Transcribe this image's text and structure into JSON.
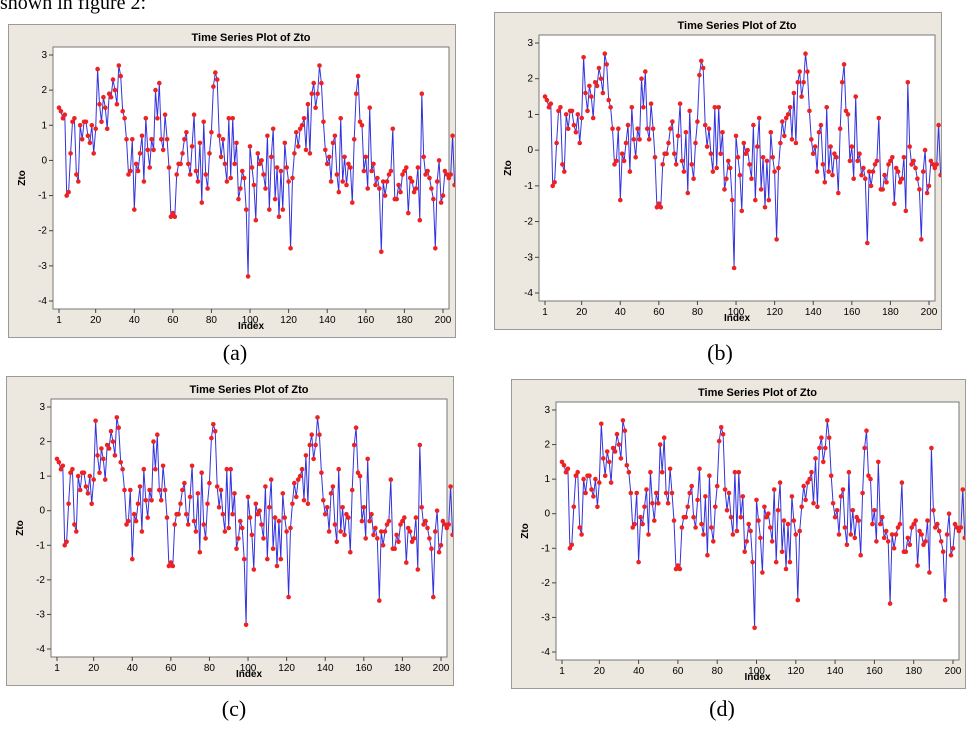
{
  "top_fragment": "shown in figure 2:",
  "captions": [
    "(a)",
    "(b)",
    "(c)",
    "(d)"
  ],
  "chart_data": [
    {
      "type": "line",
      "title": "Time Series Plot of Zto",
      "xlabel": "Index",
      "ylabel": "Zto",
      "xticks": [
        1,
        20,
        40,
        60,
        80,
        100,
        120,
        140,
        160,
        180,
        200
      ],
      "yticks": [
        -4,
        -3,
        -2,
        -1,
        0,
        1,
        2,
        3
      ],
      "xlim": [
        1,
        200
      ],
      "ylim": [
        -4,
        3
      ],
      "line_color": "#3333dd",
      "marker_color": "#ee2222",
      "series": [
        {
          "values": [
            1.5,
            1.4,
            1.2,
            1.3,
            -1.0,
            -0.9,
            0.2,
            1.1,
            1.2,
            -0.4,
            -0.6,
            1.0,
            0.6,
            1.1,
            1.1,
            0.7,
            0.5,
            1.0,
            0.2,
            0.9,
            2.6,
            1.6,
            1.1,
            1.8,
            1.5,
            0.9,
            1.9,
            1.8,
            2.3,
            2.0,
            1.6,
            2.7,
            2.4,
            1.4,
            1.2,
            0.6,
            -0.4,
            -0.3,
            0.6,
            -1.4,
            -0.1,
            -0.3,
            0.2,
            0.7,
            -0.6,
            1.2,
            0.3,
            -0.2,
            0.6,
            0.3,
            2.0,
            1.2,
            2.2,
            0.6,
            0.3,
            1.3,
            0.6,
            -0.2,
            -1.6,
            -1.5,
            -1.6,
            -0.4,
            -0.1,
            -0.1,
            0.2,
            0.6,
            0.8,
            -0.1,
            -0.4,
            0.4,
            1.3,
            -0.3,
            -0.6,
            0.5,
            -1.2,
            1.1,
            -0.4,
            -0.8,
            0.2,
            0.8,
            2.1,
            2.5,
            2.3,
            0.7,
            0.1,
            0.6,
            -0.1,
            -0.6,
            1.2,
            -0.5,
            1.2,
            -0.1,
            0.5,
            -1.1,
            -0.8,
            -0.3,
            -0.5,
            -1.4,
            -3.3,
            0.4,
            -0.2,
            -0.7,
            -1.7,
            0.2,
            -0.1,
            0.0,
            -0.4,
            -0.8,
            0.7,
            -1.4,
            0.1,
            0.9,
            -1.1,
            -0.2,
            -1.6,
            -0.3,
            -1.4,
            0.5,
            -0.2,
            -0.6,
            -2.5,
            -0.5,
            0.2,
            0.8,
            0.4,
            0.9,
            1.0,
            1.2,
            0.3,
            1.6,
            0.2,
            1.9,
            2.2,
            1.5,
            1.9,
            2.7,
            2.2,
            1.1,
            0.3,
            -0.1,
            0.1,
            -0.6,
            0.5,
            0.7,
            -0.4,
            -0.9,
            1.2,
            -0.6,
            0.1,
            -0.7,
            -0.1,
            -0.2,
            -1.2,
            0.6,
            1.9,
            2.4,
            1.1,
            1.0,
            -0.3,
            0.1,
            -0.8,
            1.5,
            -0.3,
            -0.1,
            -0.7,
            -0.5,
            -0.8,
            -2.6,
            -0.6,
            -1.0,
            -0.6,
            -0.4,
            -0.3,
            0.9,
            -1.1,
            -1.1,
            -0.7,
            -0.9,
            -0.4,
            -0.3,
            -0.2,
            -1.5,
            -0.5,
            -0.6,
            -0.9,
            -0.8,
            -0.2,
            -1.7,
            1.9,
            0.1,
            -0.4,
            -0.3,
            -0.5,
            -0.8,
            -1.1,
            -2.5,
            -0.6,
            0.0,
            -1.2,
            -1.0,
            -0.3,
            -0.4,
            -0.5,
            -0.4,
            0.7,
            -0.7
          ]
        }
      ]
    },
    {
      "type": "line",
      "title": "Time Series Plot of Zto",
      "xlabel": "Index",
      "ylabel": "Zto",
      "xticks": [
        1,
        20,
        40,
        60,
        80,
        100,
        120,
        140,
        160,
        180,
        200
      ],
      "yticks": [
        -4,
        -3,
        -2,
        -1,
        0,
        1,
        2,
        3
      ],
      "xlim": [
        1,
        200
      ],
      "ylim": [
        -4,
        3
      ],
      "line_color": "#3333dd",
      "marker_color": "#ee2222",
      "series": [
        {
          "values": [
            1.5,
            1.4,
            1.2,
            1.3,
            -1.0,
            -0.9,
            0.2,
            1.1,
            1.2,
            -0.4,
            -0.6,
            1.0,
            0.6,
            1.1,
            1.1,
            0.7,
            0.5,
            1.0,
            0.2,
            0.9,
            2.6,
            1.6,
            1.1,
            1.8,
            1.5,
            0.9,
            1.9,
            1.8,
            2.3,
            2.0,
            1.6,
            2.7,
            2.4,
            1.4,
            1.2,
            0.6,
            -0.4,
            -0.3,
            0.6,
            -1.4,
            -0.1,
            -0.3,
            0.2,
            0.7,
            -0.6,
            1.2,
            0.3,
            -0.2,
            0.6,
            0.3,
            2.0,
            1.2,
            2.2,
            0.6,
            0.3,
            1.3,
            0.6,
            -0.2,
            -1.6,
            -1.5,
            -1.6,
            -0.4,
            -0.1,
            -0.1,
            0.2,
            0.6,
            0.8,
            -0.1,
            -0.4,
            0.4,
            1.3,
            -0.3,
            -0.6,
            0.5,
            -1.2,
            1.1,
            -0.4,
            -0.8,
            0.2,
            0.8,
            2.1,
            2.5,
            2.3,
            0.7,
            0.1,
            0.6,
            -0.1,
            -0.6,
            1.2,
            -0.5,
            1.2,
            -0.1,
            0.5,
            -1.1,
            -0.8,
            -0.3,
            -0.5,
            -1.4,
            -3.3,
            0.4,
            -0.2,
            -0.7,
            -1.7,
            0.2,
            -0.1,
            0.0,
            -0.4,
            -0.8,
            0.7,
            -1.4,
            0.1,
            0.9,
            -1.1,
            -0.2,
            -1.6,
            -0.3,
            -1.4,
            0.5,
            -0.2,
            -0.6,
            -2.5,
            -0.5,
            0.2,
            0.8,
            0.4,
            0.9,
            1.0,
            1.2,
            0.3,
            1.6,
            0.2,
            1.9,
            2.2,
            1.5,
            1.9,
            2.7,
            2.2,
            1.1,
            0.3,
            -0.1,
            0.1,
            -0.6,
            0.5,
            0.7,
            -0.4,
            -0.9,
            1.2,
            -0.6,
            0.1,
            -0.7,
            -0.1,
            -0.2,
            -1.2,
            0.6,
            1.9,
            2.4,
            1.1,
            1.0,
            -0.3,
            0.1,
            -0.8,
            1.5,
            -0.3,
            -0.1,
            -0.7,
            -0.5,
            -0.8,
            -2.6,
            -0.6,
            -1.0,
            -0.6,
            -0.4,
            -0.3,
            0.9,
            -1.1,
            -1.1,
            -0.7,
            -0.9,
            -0.4,
            -0.3,
            -0.2,
            -1.5,
            -0.5,
            -0.6,
            -0.9,
            -0.8,
            -0.2,
            -1.7,
            1.9,
            0.1,
            -0.4,
            -0.3,
            -0.5,
            -0.8,
            -1.1,
            -2.5,
            -0.6,
            0.0,
            -1.2,
            -1.0,
            -0.3,
            -0.4,
            -0.5,
            -0.4,
            0.7,
            -0.7
          ]
        }
      ]
    },
    {
      "type": "line",
      "title": "Time Series Plot of Zto",
      "xlabel": "Index",
      "ylabel": "Zto",
      "xticks": [
        1,
        20,
        40,
        60,
        80,
        100,
        120,
        140,
        160,
        180,
        200
      ],
      "yticks": [
        -4,
        -3,
        -2,
        -1,
        0,
        1,
        2,
        3
      ],
      "xlim": [
        1,
        200
      ],
      "ylim": [
        -4,
        3
      ],
      "line_color": "#3333dd",
      "marker_color": "#ee2222",
      "series": [
        {
          "values": [
            1.5,
            1.4,
            1.2,
            1.3,
            -1.0,
            -0.9,
            0.2,
            1.1,
            1.2,
            -0.4,
            -0.6,
            1.0,
            0.6,
            1.1,
            1.1,
            0.7,
            0.5,
            1.0,
            0.2,
            0.9,
            2.6,
            1.6,
            1.1,
            1.8,
            1.5,
            0.9,
            1.9,
            1.8,
            2.3,
            2.0,
            1.6,
            2.7,
            2.4,
            1.4,
            1.2,
            0.6,
            -0.4,
            -0.3,
            0.6,
            -1.4,
            -0.1,
            -0.3,
            0.2,
            0.7,
            -0.6,
            1.2,
            0.3,
            -0.2,
            0.6,
            0.3,
            2.0,
            1.2,
            2.2,
            0.6,
            0.3,
            1.3,
            0.6,
            -0.2,
            -1.6,
            -1.5,
            -1.6,
            -0.4,
            -0.1,
            -0.1,
            0.2,
            0.6,
            0.8,
            -0.1,
            -0.4,
            0.4,
            1.3,
            -0.3,
            -0.6,
            0.5,
            -1.2,
            1.1,
            -0.4,
            -0.8,
            0.2,
            0.8,
            2.1,
            2.5,
            2.3,
            0.7,
            0.1,
            0.6,
            -0.1,
            -0.6,
            1.2,
            -0.5,
            1.2,
            -0.1,
            0.5,
            -1.1,
            -0.8,
            -0.3,
            -0.5,
            -1.4,
            -3.3,
            0.4,
            -0.2,
            -0.7,
            -1.7,
            0.2,
            -0.1,
            0.0,
            -0.4,
            -0.8,
            0.7,
            -1.4,
            0.1,
            0.9,
            -1.1,
            -0.2,
            -1.6,
            -0.3,
            -1.4,
            0.5,
            -0.2,
            -0.6,
            -2.5,
            -0.5,
            0.2,
            0.8,
            0.4,
            0.9,
            1.0,
            1.2,
            0.3,
            1.6,
            0.2,
            1.9,
            2.2,
            1.5,
            1.9,
            2.7,
            2.2,
            1.1,
            0.3,
            -0.1,
            0.1,
            -0.6,
            0.5,
            0.7,
            -0.4,
            -0.9,
            1.2,
            -0.6,
            0.1,
            -0.7,
            -0.1,
            -0.2,
            -1.2,
            0.6,
            1.9,
            2.4,
            1.1,
            1.0,
            -0.3,
            0.1,
            -0.8,
            1.5,
            -0.3,
            -0.1,
            -0.7,
            -0.5,
            -0.8,
            -2.6,
            -0.6,
            -1.0,
            -0.6,
            -0.4,
            -0.3,
            0.9,
            -1.1,
            -1.1,
            -0.7,
            -0.9,
            -0.4,
            -0.3,
            -0.2,
            -1.5,
            -0.5,
            -0.6,
            -0.9,
            -0.8,
            -0.2,
            -1.7,
            1.9,
            0.1,
            -0.4,
            -0.3,
            -0.5,
            -0.8,
            -1.1,
            -2.5,
            -0.6,
            0.0,
            -1.2,
            -1.0,
            -0.3,
            -0.4,
            -0.5,
            -0.4,
            0.7,
            -0.7
          ]
        }
      ]
    },
    {
      "type": "line",
      "title": "Time Series Plot of Zto",
      "xlabel": "Index",
      "ylabel": "Zto",
      "xticks": [
        1,
        20,
        40,
        60,
        80,
        100,
        120,
        140,
        160,
        180,
        200
      ],
      "yticks": [
        -4,
        -3,
        -2,
        -1,
        0,
        1,
        2,
        3
      ],
      "xlim": [
        1,
        200
      ],
      "ylim": [
        -4,
        3
      ],
      "line_color": "#3333dd",
      "marker_color": "#ee2222",
      "series": [
        {
          "values": [
            1.5,
            1.4,
            1.2,
            1.3,
            -1.0,
            -0.9,
            0.2,
            1.1,
            1.2,
            -0.4,
            -0.6,
            1.0,
            0.6,
            1.1,
            1.1,
            0.7,
            0.5,
            1.0,
            0.2,
            0.9,
            2.6,
            1.6,
            1.1,
            1.8,
            1.5,
            0.9,
            1.9,
            1.8,
            2.3,
            2.0,
            1.6,
            2.7,
            2.4,
            1.4,
            1.2,
            0.6,
            -0.4,
            -0.3,
            0.6,
            -1.4,
            -0.1,
            -0.3,
            0.2,
            0.7,
            -0.6,
            1.2,
            0.3,
            -0.2,
            0.6,
            0.3,
            2.0,
            1.2,
            2.2,
            0.6,
            0.3,
            1.3,
            0.6,
            -0.2,
            -1.6,
            -1.5,
            -1.6,
            -0.4,
            -0.1,
            -0.1,
            0.2,
            0.6,
            0.8,
            -0.1,
            -0.4,
            0.4,
            1.3,
            -0.3,
            -0.6,
            0.5,
            -1.2,
            1.1,
            -0.4,
            -0.8,
            0.2,
            0.8,
            2.1,
            2.5,
            2.3,
            0.7,
            0.1,
            0.6,
            -0.1,
            -0.6,
            1.2,
            -0.5,
            1.2,
            -0.1,
            0.5,
            -1.1,
            -0.8,
            -0.3,
            -0.5,
            -1.4,
            -3.3,
            0.4,
            -0.2,
            -0.7,
            -1.7,
            0.2,
            -0.1,
            0.0,
            -0.4,
            -0.8,
            0.7,
            -1.4,
            0.1,
            0.9,
            -1.1,
            -0.2,
            -1.6,
            -0.3,
            -1.4,
            0.5,
            -0.2,
            -0.6,
            -2.5,
            -0.5,
            0.2,
            0.8,
            0.4,
            0.9,
            1.0,
            1.2,
            0.3,
            1.6,
            0.2,
            1.9,
            2.2,
            1.5,
            1.9,
            2.7,
            2.2,
            1.1,
            0.3,
            -0.1,
            0.1,
            -0.6,
            0.5,
            0.7,
            -0.4,
            -0.9,
            1.2,
            -0.6,
            0.1,
            -0.7,
            -0.1,
            -0.2,
            -1.2,
            0.6,
            1.9,
            2.4,
            1.1,
            1.0,
            -0.3,
            0.1,
            -0.8,
            1.5,
            -0.3,
            -0.1,
            -0.7,
            -0.5,
            -0.8,
            -2.6,
            -0.6,
            -1.0,
            -0.6,
            -0.4,
            -0.3,
            0.9,
            -1.1,
            -1.1,
            -0.7,
            -0.9,
            -0.4,
            -0.3,
            -0.2,
            -1.5,
            -0.5,
            -0.6,
            -0.9,
            -0.8,
            -0.2,
            -1.7,
            1.9,
            0.1,
            -0.4,
            -0.3,
            -0.5,
            -0.8,
            -1.1,
            -2.5,
            -0.6,
            0.0,
            -1.2,
            -1.0,
            -0.3,
            -0.4,
            -0.5,
            -0.4,
            0.7,
            -0.7
          ]
        }
      ]
    }
  ]
}
